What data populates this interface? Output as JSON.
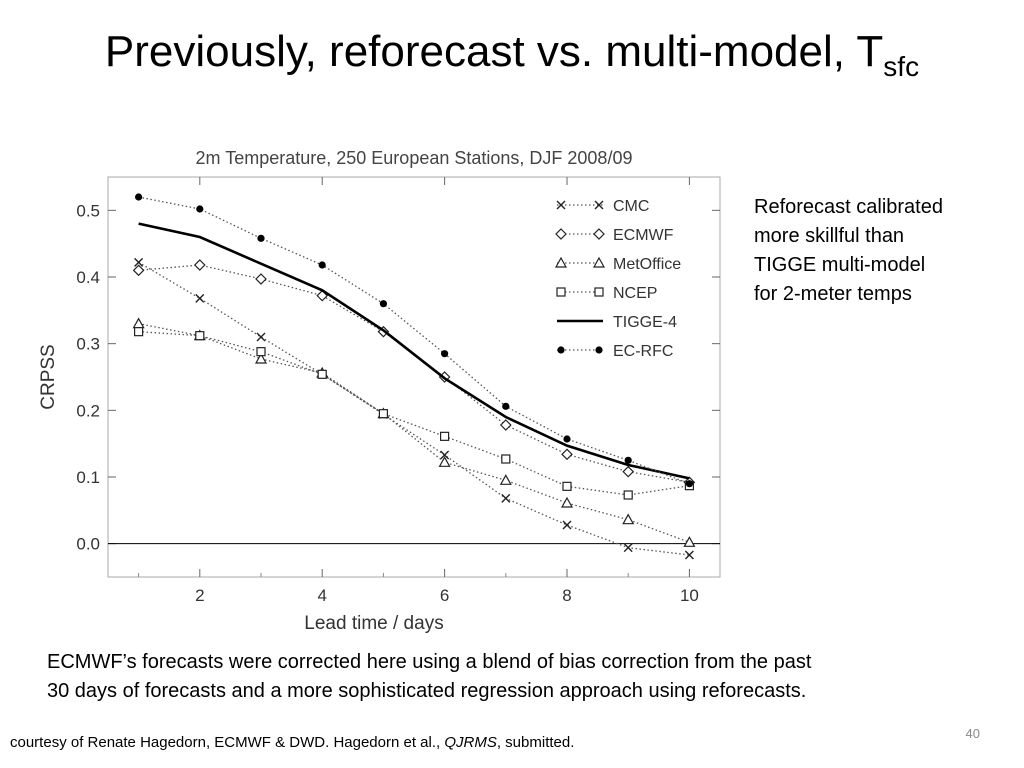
{
  "slide": {
    "title_main": "Previously, reforecast vs. multi-model, T",
    "title_sub": "sfc",
    "side_note_lines": [
      "Reforecast calibrated",
      "more skillful than",
      "TIGGE multi-model",
      "for 2-meter temps"
    ],
    "explanation_lines": [
      "ECMWF’s forecasts were corrected here using a blend of bias correction from the past",
      "30 days of forecasts and a more sophisticated regression approach using reforecasts."
    ],
    "page_number": "40",
    "credit": {
      "prefix": "courtesy of Renate Hagedorn, ECMWF & DWD.  Hagedorn et al., ",
      "journal": "QJRMS",
      "suffix": ", submitted."
    }
  },
  "chart_data": {
    "type": "line",
    "title": "2m Temperature, 250 European Stations, DJF 2008/09",
    "xlabel": "Lead time / days",
    "ylabel": "CRPSS",
    "xlim": [
      0.5,
      10.5
    ],
    "ylim": [
      -0.05,
      0.55
    ],
    "xticks": [
      2,
      4,
      6,
      8,
      10
    ],
    "xtick_labels": [
      "2",
      "4",
      "6",
      "8",
      "10"
    ],
    "yticks": [
      0.0,
      0.1,
      0.2,
      0.3,
      0.4,
      0.5
    ],
    "ytick_labels": [
      "0.0",
      "0.1",
      "0.2",
      "0.3",
      "0.4",
      "0.5"
    ],
    "zero_line": true,
    "grid": false,
    "legend_position": "top-right",
    "x": [
      1,
      2,
      3,
      4,
      5,
      6,
      7,
      8,
      9,
      10
    ],
    "series": [
      {
        "name": "CMC",
        "marker": "x",
        "line": "dotted",
        "values": [
          0.422,
          0.368,
          0.31,
          0.254,
          0.194,
          0.133,
          0.068,
          0.028,
          -0.006,
          -0.017
        ]
      },
      {
        "name": "ECMWF",
        "marker": "diamond",
        "line": "dotted",
        "values": [
          0.41,
          0.418,
          0.397,
          0.372,
          0.318,
          0.25,
          0.178,
          0.134,
          0.108,
          0.092
        ]
      },
      {
        "name": "MetOffice",
        "marker": "triangle",
        "line": "dotted",
        "values": [
          0.33,
          0.312,
          0.277,
          0.256,
          0.195,
          0.122,
          0.095,
          0.061,
          0.036,
          0.002
        ]
      },
      {
        "name": "NCEP",
        "marker": "square",
        "line": "dotted",
        "values": [
          0.318,
          0.312,
          0.288,
          0.254,
          0.195,
          0.161,
          0.127,
          0.086,
          0.073,
          0.087
        ]
      },
      {
        "name": "TIGGE-4",
        "marker": "none",
        "line": "solid",
        "values": [
          0.48,
          0.46,
          0.42,
          0.38,
          0.32,
          0.248,
          0.19,
          0.147,
          0.118,
          0.098
        ]
      },
      {
        "name": "EC-RFC",
        "marker": "dot",
        "line": "dotted",
        "values": [
          0.52,
          0.502,
          0.458,
          0.418,
          0.36,
          0.285,
          0.206,
          0.157,
          0.125,
          0.09
        ]
      }
    ]
  }
}
